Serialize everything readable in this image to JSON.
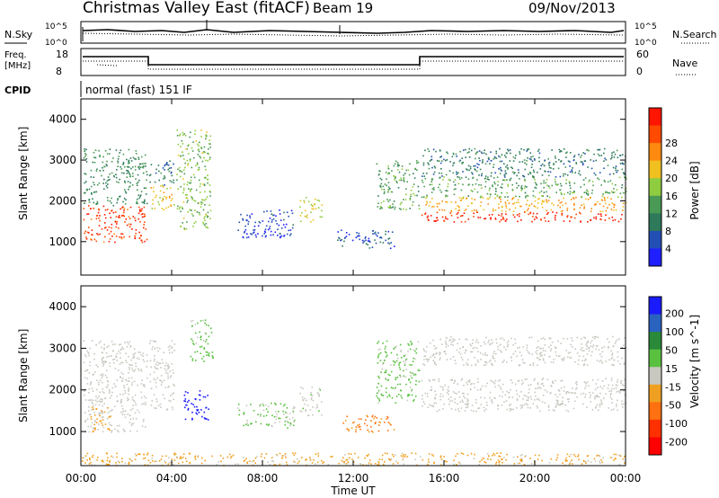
{
  "header": {
    "title": "Christmas Valley East (fitACF)",
    "beam": "Beam 19",
    "date": "09/Nov/2013"
  },
  "top_panels": {
    "nsky_label": "N.Sky",
    "nsearch_label": "N.Search",
    "noise_ticks": [
      "10^5",
      "10^0"
    ],
    "freq_label": "Freq.",
    "freq_unit": "[MHz]",
    "freq_ticks": [
      "18",
      "8"
    ],
    "nave_label": "Nave",
    "nave_ticks": [
      "60",
      "0"
    ],
    "cpid_label": "CPID",
    "cpid_text": "normal (fast) 151 IF"
  },
  "colors": {
    "power_scale": [
      "#1f1fff",
      "#234fb4",
      "#2e7a5a",
      "#4a9a55",
      "#8fcc40",
      "#f0c020",
      "#ff8a10",
      "#ff4a00",
      "#ff1500"
    ],
    "velocity_scale": [
      "#1a1aff",
      "#2a62c0",
      "#2a8a3a",
      "#5ac040",
      "#c8c8c0",
      "#f0a020",
      "#ff7010",
      "#ff3000",
      "#ff0000"
    ]
  },
  "chart_data": [
    {
      "type": "heatmap",
      "name": "power",
      "ylabel": "Slant Range [km]",
      "ylim": [
        180,
        4500
      ],
      "yticks": [
        "1000",
        "2000",
        "3000",
        "4000"
      ],
      "xlim": [
        0,
        24
      ],
      "colorbar_label": "Power [dB]",
      "colorbar_ticks": [
        "4",
        "8",
        "12",
        "16",
        "20",
        "24",
        "28"
      ],
      "echo_regions": [
        {
          "t0": 0.1,
          "t1": 2.9,
          "r0": 1000,
          "r1": 1900,
          "value": 26
        },
        {
          "t0": 0.1,
          "t1": 2.9,
          "r0": 1900,
          "r1": 3300,
          "value": 10
        },
        {
          "t0": 3.0,
          "t1": 4.1,
          "r0": 1800,
          "r1": 2400,
          "value": 18
        },
        {
          "t0": 3.0,
          "t1": 4.1,
          "r0": 2400,
          "r1": 3000,
          "value": 8
        },
        {
          "t0": 4.2,
          "t1": 5.7,
          "r0": 1300,
          "r1": 3800,
          "value": 14
        },
        {
          "t0": 6.9,
          "t1": 9.4,
          "r0": 1100,
          "r1": 1800,
          "value": 4
        },
        {
          "t0": 9.6,
          "t1": 10.6,
          "r0": 1500,
          "r1": 2100,
          "value": 17
        },
        {
          "t0": 11.2,
          "t1": 13.8,
          "r0": 850,
          "r1": 1300,
          "value": 5
        },
        {
          "t0": 13.0,
          "t1": 14.9,
          "r0": 1800,
          "r1": 3000,
          "value": 12
        },
        {
          "t0": 15.0,
          "t1": 24.0,
          "r0": 1500,
          "r1": 1750,
          "value": 28
        },
        {
          "t0": 15.0,
          "t1": 24.0,
          "r0": 1750,
          "r1": 2100,
          "value": 20
        },
        {
          "t0": 15.0,
          "t1": 24.0,
          "r0": 2100,
          "r1": 2600,
          "value": 12
        },
        {
          "t0": 15.0,
          "t1": 24.0,
          "r0": 2600,
          "r1": 3300,
          "value": 8
        }
      ]
    },
    {
      "type": "heatmap",
      "name": "velocity",
      "ylabel": "Slant Range [km]",
      "ylim": [
        180,
        4500
      ],
      "yticks": [
        "1000",
        "2000",
        "3000",
        "4000"
      ],
      "xlim": [
        0,
        24
      ],
      "xticks": [
        "00:00",
        "04:00",
        "08:00",
        "12:00",
        "16:00",
        "20:00",
        "00:00"
      ],
      "xlabel": "Time UT",
      "colorbar_label": "Velocity [m s^-1]",
      "colorbar_ticks": [
        "200",
        "100",
        "50",
        "15",
        "-15",
        "-50",
        "-100",
        "-200"
      ],
      "echo_regions": [
        {
          "t0": 0.1,
          "t1": 2.9,
          "r0": 1000,
          "r1": 3200,
          "value": 0
        },
        {
          "t0": 0.4,
          "t1": 1.3,
          "r0": 1000,
          "r1": 1600,
          "value": -60
        },
        {
          "t0": 3.0,
          "t1": 4.1,
          "r0": 1500,
          "r1": 3200,
          "value": 0
        },
        {
          "t0": 4.5,
          "t1": 5.7,
          "r0": 1300,
          "r1": 2000,
          "value": 220
        },
        {
          "t0": 4.8,
          "t1": 5.8,
          "r0": 2700,
          "r1": 3700,
          "value": 40
        },
        {
          "t0": 6.9,
          "t1": 9.4,
          "r0": 1100,
          "r1": 1700,
          "value": 30
        },
        {
          "t0": 9.6,
          "t1": 10.6,
          "r0": 1400,
          "r1": 2100,
          "value": 10
        },
        {
          "t0": 11.5,
          "t1": 13.8,
          "r0": 1000,
          "r1": 1400,
          "value": -90
        },
        {
          "t0": 13.0,
          "t1": 14.9,
          "r0": 1700,
          "r1": 3200,
          "value": 40
        },
        {
          "t0": 15.0,
          "t1": 24.0,
          "r0": 1500,
          "r1": 2300,
          "value": 0
        },
        {
          "t0": 15.0,
          "t1": 24.0,
          "r0": 2600,
          "r1": 3300,
          "value": 0
        },
        {
          "t0": 0.0,
          "t1": 24.0,
          "r0": 200,
          "r1": 500,
          "value": -40
        }
      ]
    }
  ]
}
